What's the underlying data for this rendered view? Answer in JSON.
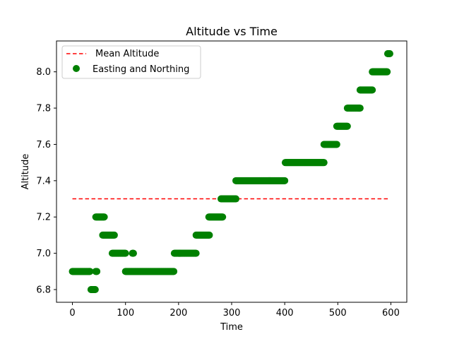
{
  "chart_data": {
    "type": "scatter",
    "title": "Altitude vs Time",
    "xlabel": "Time",
    "ylabel": "Altitude",
    "xlim": [
      -30,
      630
    ],
    "ylim": [
      6.73,
      8.17
    ],
    "xticks": [
      0,
      100,
      200,
      300,
      400,
      500,
      600
    ],
    "xtick_labels": [
      "0",
      "100",
      "200",
      "300",
      "400",
      "500",
      "600"
    ],
    "yticks": [
      6.8,
      7.0,
      7.2,
      7.4,
      7.6,
      7.8,
      8.0
    ],
    "ytick_labels": [
      "6.8",
      "7.0",
      "7.2",
      "7.4",
      "7.6",
      "7.8",
      "8.0"
    ],
    "grid": false,
    "legend_position": "top-left",
    "series": [
      {
        "name": "Mean Altitude",
        "kind": "line",
        "style": "dashed",
        "color": "#ff0000",
        "x": [
          0,
          597
        ],
        "y": [
          7.3,
          7.3
        ]
      },
      {
        "name": "Easting and Northing",
        "kind": "scatter",
        "color": "#008000",
        "segments": [
          {
            "x_start": 0,
            "x_end": 33,
            "y": 6.9
          },
          {
            "x_start": 35,
            "x_end": 43,
            "y": 6.8
          },
          {
            "x_start": 44,
            "x_end": 46,
            "y": 6.9
          },
          {
            "x_start": 44,
            "x_end": 60,
            "y": 7.2
          },
          {
            "x_start": 57,
            "x_end": 79,
            "y": 7.1
          },
          {
            "x_start": 75,
            "x_end": 100,
            "y": 7.0
          },
          {
            "x_start": 113,
            "x_end": 115,
            "y": 7.0
          },
          {
            "x_start": 100,
            "x_end": 191,
            "y": 6.9
          },
          {
            "x_start": 192,
            "x_end": 233,
            "y": 7.0
          },
          {
            "x_start": 233,
            "x_end": 258,
            "y": 7.1
          },
          {
            "x_start": 257,
            "x_end": 283,
            "y": 7.2
          },
          {
            "x_start": 280,
            "x_end": 308,
            "y": 7.3
          },
          {
            "x_start": 308,
            "x_end": 400,
            "y": 7.4
          },
          {
            "x_start": 401,
            "x_end": 474,
            "y": 7.5
          },
          {
            "x_start": 474,
            "x_end": 498,
            "y": 7.6
          },
          {
            "x_start": 498,
            "x_end": 518,
            "y": 7.7
          },
          {
            "x_start": 518,
            "x_end": 542,
            "y": 7.8
          },
          {
            "x_start": 542,
            "x_end": 565,
            "y": 7.9
          },
          {
            "x_start": 565,
            "x_end": 593,
            "y": 8.0
          },
          {
            "x_start": 594,
            "x_end": 598,
            "y": 8.1
          }
        ]
      }
    ]
  }
}
